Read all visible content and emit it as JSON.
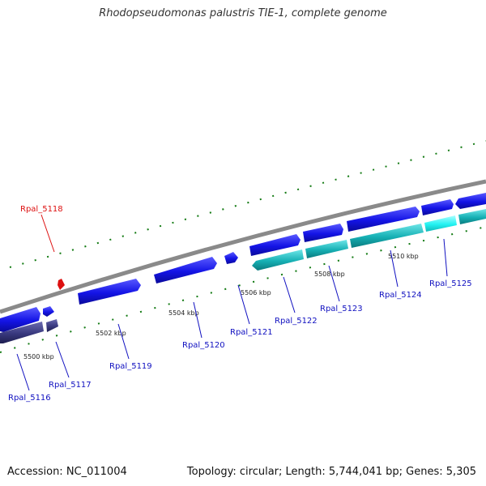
{
  "header": {
    "title": "Rhodopseudomonas palustris TIE-1, complete genome"
  },
  "footer": {
    "accession": "Accession: NC_011004",
    "topology": "Topology: circular; Length: 5,744,041 bp; Genes: 5,305"
  },
  "colors": {
    "backbone": "#8a8a8a",
    "gene_forward": "#1010e0",
    "gene_reverse_navy": "#34347a",
    "gene_reverse_teal": "#12b4b8",
    "gene_highlight": "#1ef0f0",
    "tick": "#127a12",
    "label_blue": "#1010c0",
    "label_red": "#dd1010"
  },
  "map": {
    "ruler_labels": [
      "5500 kbp",
      "5502 kbp",
      "5504 kbp",
      "5506 kbp",
      "5508 kbp",
      "5510 kbp"
    ],
    "gene_labels": [
      "Rpal_5116",
      "Rpal_5117",
      "Rpal_5118",
      "Rpal_5119",
      "Rpal_5120",
      "Rpal_5121",
      "Rpal_5122",
      "Rpal_5123",
      "Rpal_5124",
      "Rpal_5125"
    ]
  }
}
